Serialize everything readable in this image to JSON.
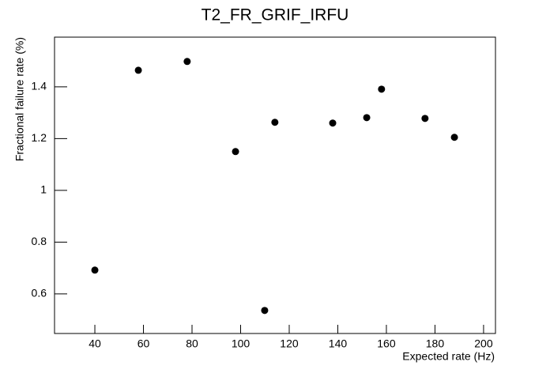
{
  "chart_data": {
    "type": "scatter",
    "title": "T2_FR_GRIF_IRFU",
    "x_label": "Expected rate (Hz)",
    "y_label": "Fractional failure rate (%)",
    "x": [
      40,
      57.9,
      78.0,
      97.9,
      109.9,
      114.1,
      137.9,
      151.9,
      158.0,
      175.9,
      188.0
    ],
    "y": [
      0.692,
      1.464,
      1.498,
      1.15,
      0.536,
      1.263,
      1.26,
      1.281,
      1.391,
      1.278,
      1.205
    ],
    "color": "#000000",
    "xlim": [
      23.4,
      204.9
    ],
    "xticks": [
      40,
      60,
      80,
      100,
      120,
      140,
      160,
      180,
      200
    ],
    "ylim": [
      0.447,
      1.592
    ],
    "yticks": [
      0.6,
      0.8,
      1,
      1.2,
      1.4
    ]
  }
}
